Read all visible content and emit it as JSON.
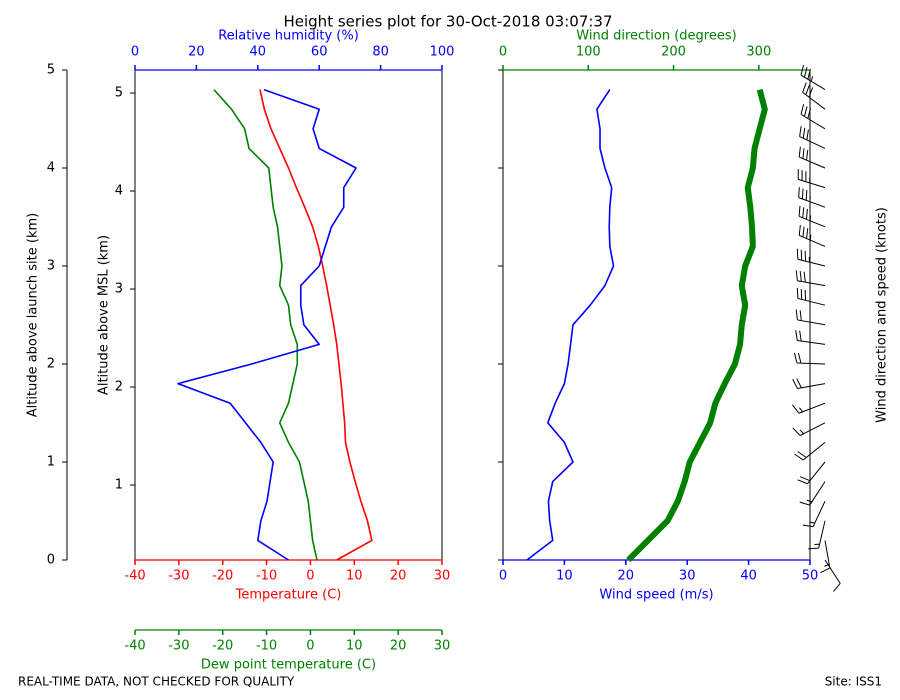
{
  "chart_data": [
    {
      "type": "line",
      "title": "Height series plot for 30-Oct-2018 03:07:37",
      "y": [
        0,
        0.2,
        0.4,
        0.6,
        0.8,
        1.0,
        1.2,
        1.4,
        1.6,
        1.8,
        2.0,
        2.2,
        2.4,
        2.6,
        2.8,
        3.0,
        3.2,
        3.4,
        3.6,
        3.8,
        4.0,
        4.2,
        4.4,
        4.6,
        4.8
      ],
      "yaxes": [
        {
          "label": "Altitude above launch site (km)",
          "lim": [
            0,
            5
          ],
          "ticks": [
            0,
            1,
            2,
            3,
            4,
            5
          ],
          "position": "outer"
        },
        {
          "label": "Altitude above MSL (km)",
          "lim": [
            0.235,
            5.235
          ],
          "ticks": [
            1,
            2,
            3,
            4,
            5
          ],
          "position": "inner"
        }
      ],
      "axes": [
        {
          "label": "Temperature (C)",
          "lim": [
            -40,
            30
          ],
          "ticks": [
            -40,
            -30,
            -20,
            -10,
            0,
            10,
            20,
            30
          ],
          "color": "#ff0000",
          "position": "bottom"
        },
        {
          "label": "Dew point temperature (C)",
          "lim": [
            -40,
            30
          ],
          "ticks": [
            -40,
            -30,
            -20,
            -10,
            0,
            10,
            20,
            30
          ],
          "color": "#008000",
          "position": "bottom2"
        },
        {
          "label": "Relative humidity (%)",
          "lim": [
            0,
            100
          ],
          "ticks": [
            0,
            20,
            40,
            60,
            80,
            100
          ],
          "color": "#0000ff",
          "position": "top"
        }
      ],
      "series": [
        {
          "axis": 0,
          "color": "#ff0000",
          "linewidth": 1.6,
          "values": [
            6,
            14,
            13,
            11.5,
            10.2,
            9,
            8,
            7.8,
            7.4,
            7,
            6.5,
            6,
            5.3,
            4.5,
            3.7,
            2.8,
            1.8,
            0.5,
            -1.3,
            -3.2,
            -5,
            -7,
            -9,
            -10.5,
            -11.5
          ]
        },
        {
          "axis": 1,
          "color": "#008000",
          "linewidth": 1.6,
          "values": [
            1.5,
            0.5,
            0,
            -0.5,
            -1.5,
            -2.5,
            -5,
            -7,
            -5,
            -4,
            -3,
            -3,
            -4.5,
            -5,
            -7,
            -6.5,
            -7,
            -7.5,
            -8.5,
            -9,
            -9.5,
            -14,
            -15,
            -18,
            -22
          ]
        },
        {
          "axis": 2,
          "color": "#0000ff",
          "linewidth": 1.6,
          "values": [
            50,
            40,
            41,
            43,
            44,
            45,
            41,
            36,
            31,
            14,
            38,
            60,
            55,
            54,
            54,
            60,
            62,
            64,
            68,
            68,
            72,
            60,
            58,
            60,
            42
          ]
        }
      ]
    },
    {
      "type": "line",
      "barbs": true,
      "barb_label": "Wind direction and speed (knots)",
      "y": [
        0,
        0.2,
        0.4,
        0.6,
        0.8,
        1.0,
        1.2,
        1.4,
        1.6,
        1.8,
        2.0,
        2.2,
        2.4,
        2.6,
        2.8,
        3.0,
        3.2,
        3.4,
        3.6,
        3.8,
        4.0,
        4.2,
        4.4,
        4.6,
        4.8
      ],
      "yaxes": [
        {
          "lim": [
            0,
            5
          ],
          "ticks": [
            0,
            1,
            2,
            3,
            4,
            5
          ],
          "position": "plain"
        }
      ],
      "axes": [
        {
          "label": "Wind speed (m/s)",
          "lim": [
            0,
            50
          ],
          "ticks": [
            0,
            10,
            20,
            30,
            40,
            50
          ],
          "color": "#0000ff",
          "position": "bottom"
        },
        {
          "label": "Wind direction (degrees)",
          "lim": [
            0,
            360
          ],
          "ticks": [
            0,
            100,
            200,
            300
          ],
          "color": "#008000",
          "position": "top"
        }
      ],
      "series": [
        {
          "axis": 0,
          "color": "#0000ff",
          "linewidth": 1.6,
          "values": [
            3.9,
            8.1,
            7.6,
            7.4,
            8.1,
            11.4,
            10,
            7.3,
            8.5,
            10,
            10.6,
            11,
            11.4,
            14.2,
            16.6,
            18,
            17.4,
            17.3,
            17.4,
            17.7,
            16.6,
            15.8,
            15.8,
            15.3,
            17.4
          ]
        },
        {
          "axis": 1,
          "color": "#008000",
          "linewidth": 6,
          "values": [
            147,
            170,
            193,
            205,
            213,
            219,
            231,
            243,
            249,
            260,
            272,
            278,
            280,
            284,
            280,
            284,
            293,
            292,
            290,
            287,
            293,
            295,
            301,
            307,
            301
          ]
        }
      ]
    }
  ],
  "footer": {
    "left": "REAL-TIME DATA, NOT CHECKED FOR QUALITY",
    "right": "Site: ISS1"
  }
}
